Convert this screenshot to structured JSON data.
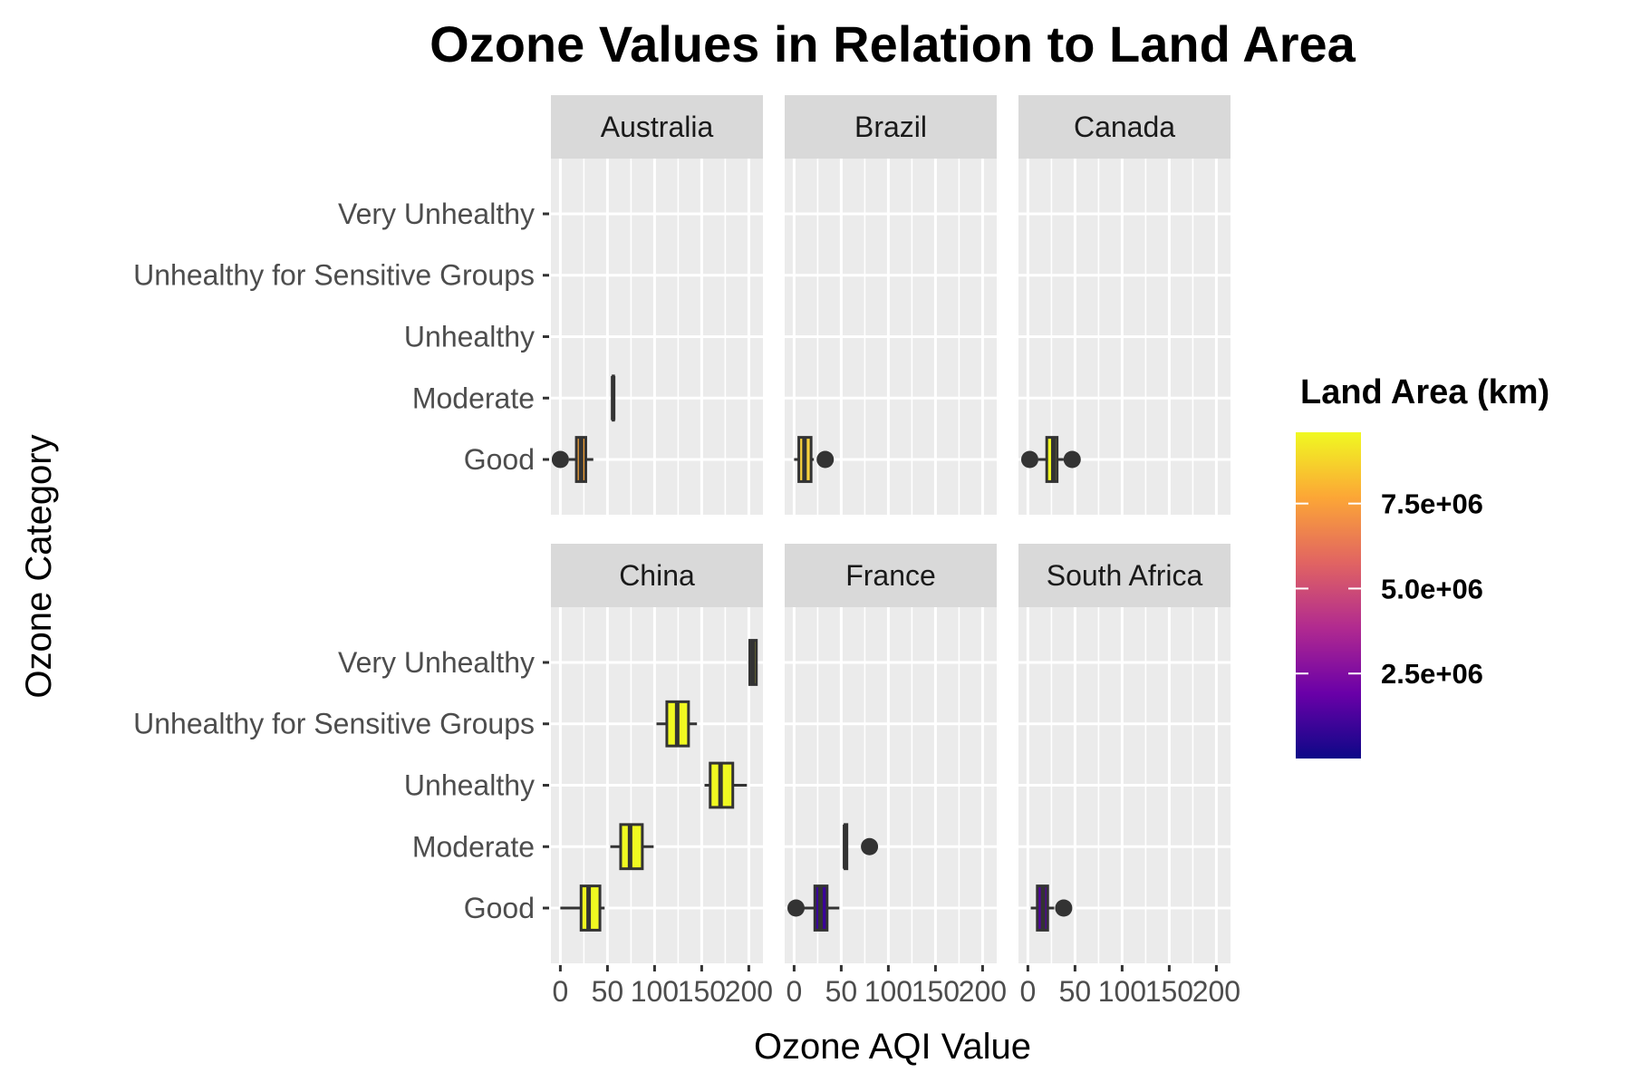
{
  "chart_data": {
    "type": "boxplot",
    "title": "Ozone Values in Relation to Land Area",
    "xlabel": "Ozone AQI Value",
    "ylabel": "Ozone Category",
    "xlim": [
      -10,
      215
    ],
    "x_ticks": [
      0,
      50,
      100,
      150,
      200
    ],
    "categories": [
      "Good",
      "Moderate",
      "Unhealthy",
      "Unhealthy for Sensitive Groups",
      "Very Unhealthy"
    ],
    "panel_order": [
      "Australia",
      "Brazil",
      "Canada",
      "China",
      "France",
      "South Africa"
    ],
    "grid": true,
    "legend": {
      "title": "Land Area (km)",
      "placement": "right",
      "range": [
        0,
        9596960
      ],
      "ticks": [
        {
          "value": 2500000,
          "label": "2.5e+06"
        },
        {
          "value": 5000000,
          "label": "5.0e+06"
        },
        {
          "value": 7500000,
          "label": "7.5e+06"
        }
      ],
      "colors": [
        "#0d0887",
        "#6a00a8",
        "#b12a90",
        "#e16462",
        "#fca636",
        "#f0f921"
      ]
    },
    "panels": [
      {
        "country": "Australia",
        "land_area": 7741220,
        "fill": "#fca636",
        "boxes": [
          {
            "category": "Good",
            "whisker_low": 9,
            "q1": 17,
            "median": 22,
            "q3": 27,
            "whisker_high": 35,
            "outliers": [
              0
            ]
          },
          {
            "category": "Moderate",
            "whisker_low": 56,
            "q1": 56,
            "median": 56,
            "q3": 56,
            "whisker_high": 56,
            "outliers": []
          }
        ]
      },
      {
        "country": "Brazil",
        "land_area": 8515767,
        "fill": "#f7d13d",
        "boxes": [
          {
            "category": "Good",
            "whisker_low": 0,
            "q1": 5,
            "median": 11,
            "q3": 18,
            "whisker_high": 21,
            "outliers": [
              33
            ]
          }
        ]
      },
      {
        "country": "Canada",
        "land_area": 9984670,
        "fill": "#f0f921",
        "boxes": [
          {
            "category": "Good",
            "whisker_low": 11,
            "q1": 20,
            "median": 27,
            "q3": 31,
            "whisker_high": 38,
            "outliers": [
              2,
              47
            ]
          }
        ]
      },
      {
        "country": "China",
        "land_area": 9596960,
        "fill": "#f0f921",
        "boxes": [
          {
            "category": "Good",
            "whisker_low": 0,
            "q1": 22,
            "median": 30,
            "q3": 42,
            "whisker_high": 47,
            "outliers": []
          },
          {
            "category": "Moderate",
            "whisker_low": 53,
            "q1": 64,
            "median": 74,
            "q3": 87,
            "whisker_high": 99,
            "outliers": []
          },
          {
            "category": "Unhealthy",
            "whisker_low": 153,
            "q1": 159,
            "median": 170,
            "q3": 183,
            "whisker_high": 198,
            "outliers": []
          },
          {
            "category": "Unhealthy for Sensitive Groups",
            "whisker_low": 102,
            "q1": 113,
            "median": 124,
            "q3": 136,
            "whisker_high": 145,
            "outliers": []
          },
          {
            "category": "Very Unhealthy",
            "whisker_low": 201,
            "q1": 201,
            "median": 204,
            "q3": 208,
            "whisker_high": 208,
            "outliers": []
          }
        ]
      },
      {
        "country": "France",
        "land_area": 551695,
        "fill": "#3a049a",
        "boxes": [
          {
            "category": "Good",
            "whisker_low": 8,
            "q1": 22,
            "median": 28,
            "q3": 35,
            "whisker_high": 48,
            "outliers": [
              2
            ]
          },
          {
            "category": "Moderate",
            "whisker_low": 54,
            "q1": 54,
            "median": 54,
            "q3": 56,
            "whisker_high": 56,
            "outliers": [
              80
            ]
          }
        ]
      },
      {
        "country": "South Africa",
        "land_area": 1221037,
        "fill": "#5302a3",
        "boxes": [
          {
            "category": "Good",
            "whisker_low": 3,
            "q1": 10,
            "median": 16,
            "q3": 21,
            "whisker_high": 28,
            "outliers": [
              38
            ]
          }
        ]
      }
    ]
  }
}
